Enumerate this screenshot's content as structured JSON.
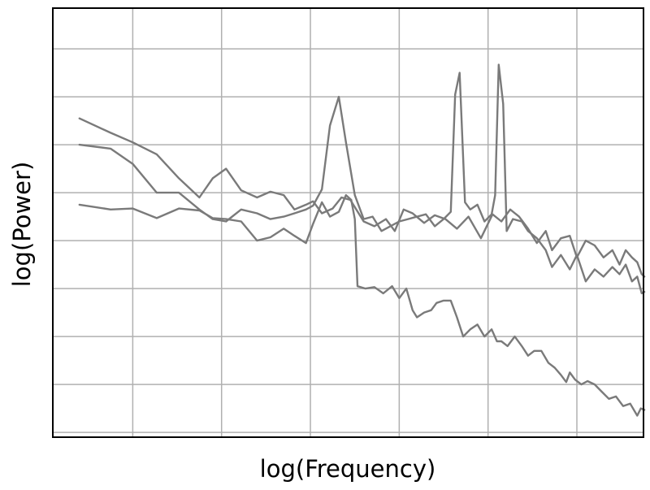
{
  "chart_data": {
    "type": "line",
    "xlabel": "log(Frequency)",
    "ylabel": "log(Power)",
    "x_scale": "log",
    "y_scale": "log",
    "grid": true,
    "x_tick_labels_shown": false,
    "y_tick_labels_shown": false,
    "xlim": [
      0.0,
      6.65
    ],
    "ylim": [
      -0.05,
      8.9
    ],
    "x_gridlines": [
      0.9,
      1.9,
      2.9,
      3.9,
      4.9,
      5.9
    ],
    "y_gridlines": [
      0.05,
      1.05,
      2.05,
      3.05,
      4.05,
      5.05,
      6.05,
      7.05,
      8.05
    ],
    "colors": {
      "line": "#7a7a7a",
      "grid": "#b0b0b0",
      "frame": "#000000"
    },
    "series": [
      {
        "values": [
          [
            0.3,
            6.6
          ],
          [
            0.65,
            6.3
          ],
          [
            0.9,
            6.1
          ],
          [
            1.17,
            5.85
          ],
          [
            1.42,
            5.35
          ],
          [
            1.65,
            4.95
          ],
          [
            1.8,
            5.35
          ],
          [
            1.95,
            5.55
          ],
          [
            2.12,
            5.1
          ],
          [
            2.3,
            4.95
          ],
          [
            2.45,
            5.07
          ],
          [
            2.6,
            5.0
          ],
          [
            2.72,
            4.7
          ],
          [
            2.85,
            4.8
          ],
          [
            2.93,
            4.87
          ],
          [
            3.03,
            4.62
          ],
          [
            3.15,
            4.72
          ],
          [
            3.25,
            4.95
          ],
          [
            3.35,
            4.9
          ],
          [
            3.5,
            4.45
          ],
          [
            3.62,
            4.35
          ],
          [
            3.75,
            4.5
          ],
          [
            3.85,
            4.25
          ],
          [
            3.95,
            4.7
          ],
          [
            4.05,
            4.62
          ],
          [
            4.18,
            4.42
          ],
          [
            4.3,
            4.58
          ],
          [
            4.42,
            4.5
          ],
          [
            4.55,
            4.3
          ],
          [
            4.68,
            4.55
          ],
          [
            4.82,
            4.1
          ],
          [
            4.95,
            4.6
          ],
          [
            5.05,
            4.45
          ],
          [
            5.15,
            4.7
          ],
          [
            5.25,
            4.55
          ],
          [
            5.35,
            4.3
          ],
          [
            5.45,
            4.0
          ],
          [
            5.55,
            4.25
          ],
          [
            5.62,
            3.85
          ],
          [
            5.72,
            4.1
          ],
          [
            5.82,
            4.15
          ],
          [
            5.9,
            3.7
          ],
          [
            6.0,
            4.05
          ],
          [
            6.1,
            3.95
          ],
          [
            6.2,
            3.7
          ],
          [
            6.3,
            3.85
          ],
          [
            6.38,
            3.55
          ],
          [
            6.45,
            3.85
          ],
          [
            6.52,
            3.7
          ],
          [
            6.58,
            3.6
          ],
          [
            6.63,
            3.35
          ],
          [
            6.66,
            3.3
          ]
        ]
      },
      {
        "values": [
          [
            0.3,
            6.05
          ],
          [
            0.65,
            5.97
          ],
          [
            0.9,
            5.65
          ],
          [
            1.17,
            5.05
          ],
          [
            1.42,
            5.05
          ],
          [
            1.65,
            4.7
          ],
          [
            1.8,
            4.5
          ],
          [
            1.95,
            4.45
          ],
          [
            2.12,
            4.7
          ],
          [
            2.3,
            4.62
          ],
          [
            2.45,
            4.5
          ],
          [
            2.6,
            4.55
          ],
          [
            2.72,
            4.62
          ],
          [
            2.85,
            4.7
          ],
          [
            2.93,
            4.78
          ],
          [
            3.03,
            5.12
          ],
          [
            3.12,
            6.45
          ],
          [
            3.22,
            7.05
          ],
          [
            3.3,
            6.1
          ],
          [
            3.4,
            5.0
          ],
          [
            3.5,
            4.5
          ],
          [
            3.6,
            4.55
          ],
          [
            3.7,
            4.25
          ],
          [
            3.8,
            4.35
          ],
          [
            3.9,
            4.45
          ],
          [
            4.0,
            4.5
          ],
          [
            4.1,
            4.55
          ],
          [
            4.2,
            4.6
          ],
          [
            4.3,
            4.35
          ],
          [
            4.4,
            4.5
          ],
          [
            4.48,
            4.65
          ],
          [
            4.53,
            7.1
          ],
          [
            4.58,
            7.55
          ],
          [
            4.64,
            4.85
          ],
          [
            4.7,
            4.7
          ],
          [
            4.78,
            4.8
          ],
          [
            4.86,
            4.45
          ],
          [
            4.94,
            4.6
          ],
          [
            4.98,
            5.0
          ],
          [
            5.02,
            7.72
          ],
          [
            5.07,
            6.9
          ],
          [
            5.11,
            4.25
          ],
          [
            5.18,
            4.5
          ],
          [
            5.28,
            4.45
          ],
          [
            5.35,
            4.25
          ],
          [
            5.45,
            4.1
          ],
          [
            5.55,
            3.85
          ],
          [
            5.62,
            3.5
          ],
          [
            5.72,
            3.75
          ],
          [
            5.82,
            3.45
          ],
          [
            5.9,
            3.75
          ],
          [
            6.0,
            3.2
          ],
          [
            6.1,
            3.45
          ],
          [
            6.2,
            3.3
          ],
          [
            6.3,
            3.5
          ],
          [
            6.38,
            3.35
          ],
          [
            6.45,
            3.55
          ],
          [
            6.52,
            3.2
          ],
          [
            6.58,
            3.3
          ],
          [
            6.63,
            2.95
          ],
          [
            6.66,
            2.98
          ]
        ]
      },
      {
        "values": [
          [
            0.3,
            4.8
          ],
          [
            0.65,
            4.7
          ],
          [
            0.9,
            4.72
          ],
          [
            1.17,
            4.52
          ],
          [
            1.42,
            4.72
          ],
          [
            1.65,
            4.68
          ],
          [
            1.8,
            4.52
          ],
          [
            1.95,
            4.5
          ],
          [
            2.12,
            4.45
          ],
          [
            2.3,
            4.05
          ],
          [
            2.45,
            4.12
          ],
          [
            2.6,
            4.3
          ],
          [
            2.72,
            4.15
          ],
          [
            2.85,
            4.0
          ],
          [
            2.93,
            4.4
          ],
          [
            3.03,
            4.85
          ],
          [
            3.12,
            4.55
          ],
          [
            3.22,
            4.65
          ],
          [
            3.3,
            5.0
          ],
          [
            3.36,
            4.9
          ],
          [
            3.4,
            4.5
          ],
          [
            3.43,
            3.1
          ],
          [
            3.52,
            3.05
          ],
          [
            3.62,
            3.08
          ],
          [
            3.72,
            2.95
          ],
          [
            3.82,
            3.1
          ],
          [
            3.9,
            2.85
          ],
          [
            3.98,
            3.05
          ],
          [
            4.05,
            2.6
          ],
          [
            4.1,
            2.45
          ],
          [
            4.18,
            2.55
          ],
          [
            4.26,
            2.6
          ],
          [
            4.32,
            2.75
          ],
          [
            4.4,
            2.8
          ],
          [
            4.48,
            2.8
          ],
          [
            4.55,
            2.45
          ],
          [
            4.62,
            2.05
          ],
          [
            4.7,
            2.2
          ],
          [
            4.78,
            2.3
          ],
          [
            4.86,
            2.05
          ],
          [
            4.94,
            2.2
          ],
          [
            5.0,
            1.95
          ],
          [
            5.05,
            1.95
          ],
          [
            5.12,
            1.85
          ],
          [
            5.2,
            2.05
          ],
          [
            5.28,
            1.85
          ],
          [
            5.35,
            1.65
          ],
          [
            5.42,
            1.75
          ],
          [
            5.5,
            1.75
          ],
          [
            5.58,
            1.5
          ],
          [
            5.65,
            1.4
          ],
          [
            5.72,
            1.25
          ],
          [
            5.78,
            1.1
          ],
          [
            5.82,
            1.3
          ],
          [
            5.88,
            1.15
          ],
          [
            5.95,
            1.05
          ],
          [
            6.02,
            1.12
          ],
          [
            6.1,
            1.05
          ],
          [
            6.18,
            0.9
          ],
          [
            6.26,
            0.75
          ],
          [
            6.34,
            0.8
          ],
          [
            6.42,
            0.6
          ],
          [
            6.5,
            0.65
          ],
          [
            6.58,
            0.4
          ],
          [
            6.62,
            0.55
          ],
          [
            6.66,
            0.52
          ]
        ]
      }
    ]
  }
}
